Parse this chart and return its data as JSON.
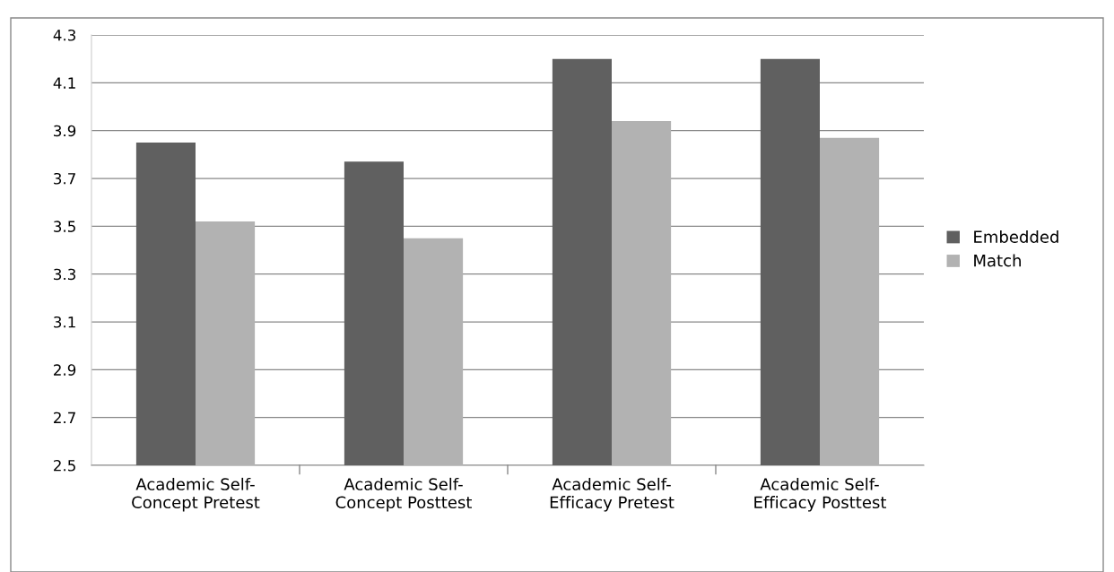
{
  "chart_data": {
    "type": "bar",
    "categories": [
      "Academic Self-\nConcept Pretest",
      "Academic Self-\nConcept Posttest",
      "Academic Self-\nEfficacy Pretest",
      "Academic Self-\nEfficacy Posttest"
    ],
    "series": [
      {
        "name": "Embedded",
        "color": "#606060",
        "values": [
          3.85,
          3.77,
          4.2,
          4.2
        ]
      },
      {
        "name": "Match",
        "color": "#b2b2b2",
        "values": [
          3.52,
          3.45,
          3.94,
          3.87
        ]
      }
    ],
    "ylim": [
      2.5,
      4.3
    ],
    "yticks": [
      2.5,
      2.7,
      2.9,
      3.1,
      3.3,
      3.5,
      3.7,
      3.9,
      4.1,
      4.3
    ],
    "grid": "y",
    "legend": "right"
  }
}
